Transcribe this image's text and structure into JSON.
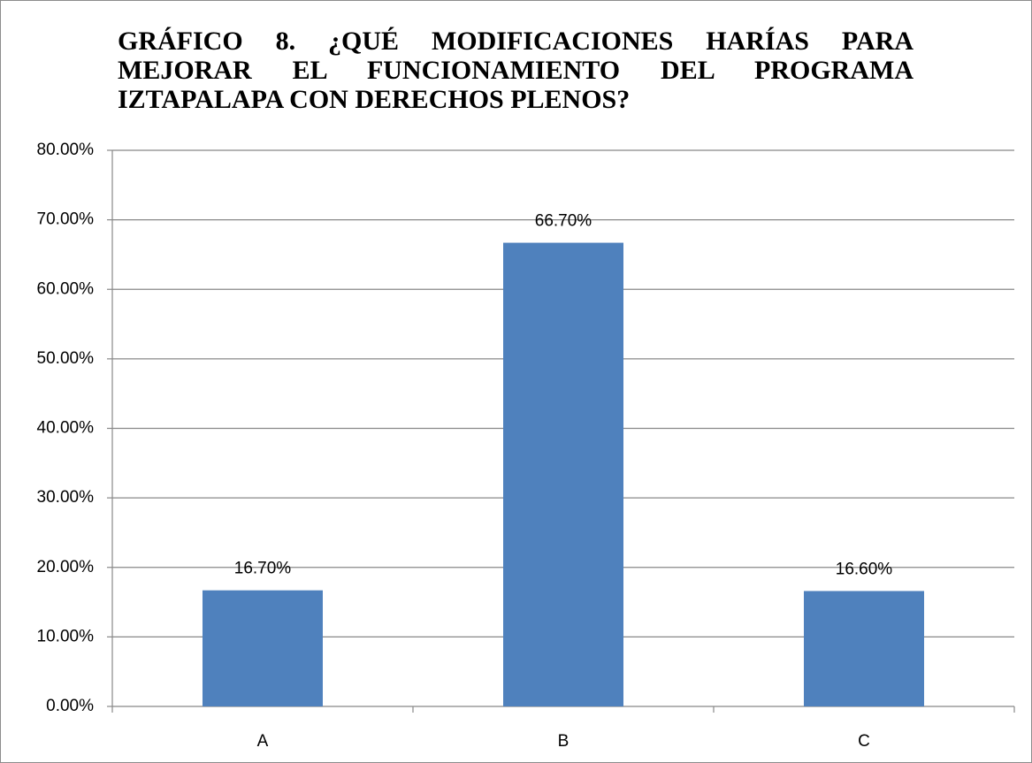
{
  "chart_data": {
    "type": "bar",
    "title": "GRÁFICO 8. ¿QUÉ MODIFICACIONES HARÍAS PARA MEJORAR EL FUNCIONAMIENTO DEL PROGRAMA IZTAPALAPA CON DERECHOS PLENOS?",
    "categories": [
      "A",
      "B",
      "C"
    ],
    "values": [
      16.7,
      66.7,
      16.6
    ],
    "value_labels": [
      "16.70%",
      "66.70%",
      "16.60%"
    ],
    "color": "#4f81bd",
    "ylim": [
      0,
      80
    ],
    "yticks": [
      {
        "value": 0,
        "label": "0.00%"
      },
      {
        "value": 10,
        "label": "10.00%"
      },
      {
        "value": 20,
        "label": "20.00%"
      },
      {
        "value": 30,
        "label": "30.00%"
      },
      {
        "value": 40,
        "label": "40.00%"
      },
      {
        "value": 50,
        "label": "50.00%"
      },
      {
        "value": 60,
        "label": "60.00%"
      },
      {
        "value": 70,
        "label": "70.00%"
      },
      {
        "value": 80,
        "label": "80.00%"
      }
    ],
    "grid": true
  }
}
